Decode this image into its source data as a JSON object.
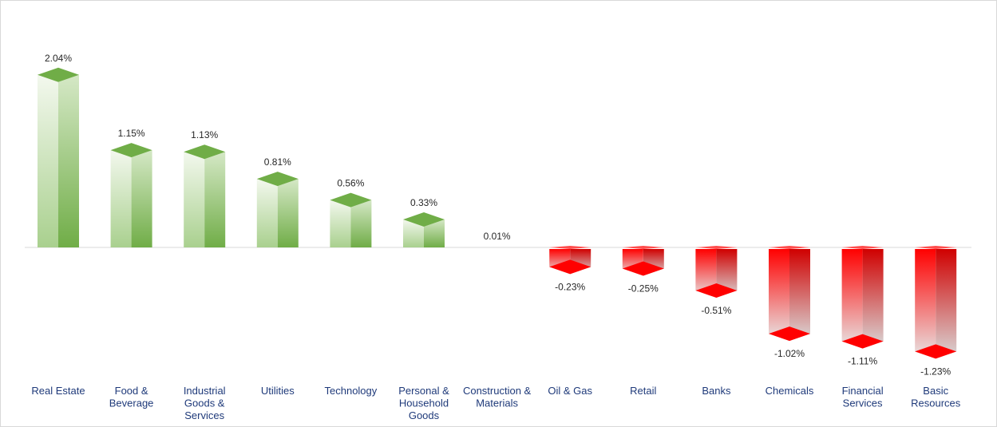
{
  "chart_data": {
    "type": "bar",
    "categories": [
      "Real Estate",
      "Food & Beverage",
      "Industrial Goods & Services",
      "Utilities",
      "Technology",
      "Personal & Household Goods",
      "Construction & Materials",
      "Oil & Gas",
      "Retail",
      "Banks",
      "Chemicals",
      "Financial Services",
      "Basic Resources"
    ],
    "category_lines": [
      [
        "Real Estate"
      ],
      [
        "Food &",
        "Beverage"
      ],
      [
        "Industrial",
        "Goods &",
        "Services"
      ],
      [
        "Utilities"
      ],
      [
        "Technology"
      ],
      [
        "Personal &",
        "Household",
        "Goods"
      ],
      [
        "Construction &",
        "Materials"
      ],
      [
        "Oil & Gas"
      ],
      [
        "Retail"
      ],
      [
        "Banks"
      ],
      [
        "Chemicals"
      ],
      [
        "Financial",
        "Services"
      ],
      [
        "Basic",
        "Resources"
      ]
    ],
    "values": [
      2.04,
      1.15,
      1.13,
      0.81,
      0.56,
      0.33,
      0.01,
      -0.23,
      -0.25,
      -0.51,
      -1.02,
      -1.11,
      -1.23
    ],
    "labels": [
      "2.04%",
      "1.15%",
      "1.13%",
      "0.81%",
      "0.56%",
      "0.33%",
      "0.01%",
      "-0.23%",
      "-0.25%",
      "-0.51%",
      "-1.02%",
      "-1.11%",
      "-1.23%"
    ],
    "title": "",
    "xlabel": "",
    "ylabel": "",
    "ylim": [
      -1.23,
      2.04
    ],
    "grid": false,
    "colors": {
      "positive": "#70ad47",
      "positive_dark": "#548235",
      "positive_light": "#e8f2df",
      "negative": "#ff0000",
      "negative_dark": "#d00000",
      "negative_light": "#e7e7e7",
      "category_text": "#1f3a7a",
      "value_text": "#262626",
      "axis": "#d9d9d9"
    }
  }
}
